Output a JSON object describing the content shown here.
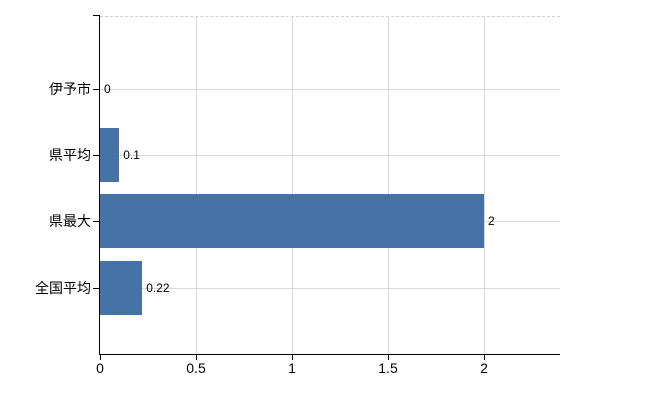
{
  "chart_data": {
    "type": "bar",
    "orientation": "horizontal",
    "title": "",
    "categories": [
      "伊予市",
      "県平均",
      "県最大",
      "全国平均"
    ],
    "values": [
      0,
      0.1,
      2,
      0.22
    ],
    "value_labels": [
      "0",
      "0.1",
      "2",
      "0.22"
    ],
    "x_ticks": [
      0,
      0.5,
      1,
      1.5,
      2
    ],
    "x_tick_labels": [
      "0",
      "0.5",
      "1",
      "1.5",
      "2"
    ],
    "xlim": [
      0,
      2.4
    ],
    "grid": true,
    "legend": false,
    "bar_color": "#4572a7",
    "vertical_gridline_color": "#d9d9d9",
    "horizontal_gridline_color": "#d6ddd2",
    "plot_border_color": "#cfcfcf",
    "axis_color": "#000000",
    "text_color": "#000000"
  }
}
